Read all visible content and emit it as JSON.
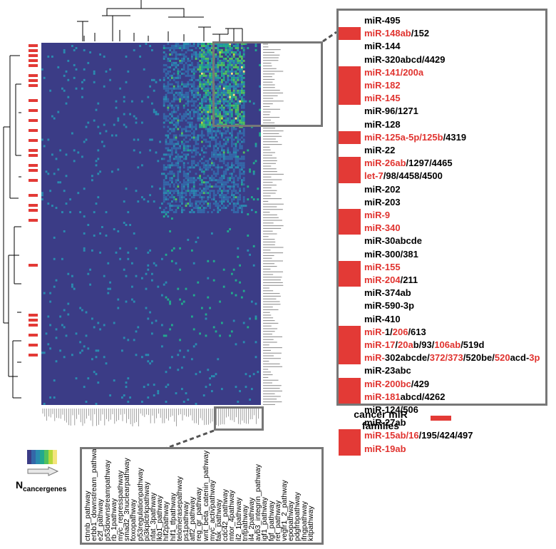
{
  "mir_families": [
    {
      "parts": [
        [
          "miR-495",
          false
        ]
      ],
      "cancer": false
    },
    {
      "parts": [
        [
          "miR-148ab",
          true
        ],
        [
          "/152",
          false
        ]
      ],
      "cancer": true
    },
    {
      "parts": [
        [
          "miR-144",
          false
        ]
      ],
      "cancer": false
    },
    {
      "parts": [
        [
          "miR-320abcd/4429",
          false
        ]
      ],
      "cancer": false
    },
    {
      "parts": [
        [
          "miR-141/200a",
          true
        ]
      ],
      "cancer": true
    },
    {
      "parts": [
        [
          "miR-182",
          true
        ]
      ],
      "cancer": true
    },
    {
      "parts": [
        [
          "miR-145",
          true
        ]
      ],
      "cancer": true
    },
    {
      "parts": [
        [
          "miR-96/1271",
          false
        ]
      ],
      "cancer": false
    },
    {
      "parts": [
        [
          "miR-128",
          false
        ]
      ],
      "cancer": false
    },
    {
      "parts": [
        [
          "miR-125a-5p/125b",
          true
        ],
        [
          "/4319",
          false
        ]
      ],
      "cancer": true
    },
    {
      "parts": [
        [
          "miR-22",
          false
        ]
      ],
      "cancer": false
    },
    {
      "parts": [
        [
          "miR-26ab",
          true
        ],
        [
          "/1297/4465",
          false
        ]
      ],
      "cancer": true
    },
    {
      "parts": [
        [
          "let-7",
          true
        ],
        [
          "/98/4458/4500",
          false
        ]
      ],
      "cancer": true
    },
    {
      "parts": [
        [
          "miR-202",
          false
        ]
      ],
      "cancer": false
    },
    {
      "parts": [
        [
          "miR-203",
          false
        ]
      ],
      "cancer": false
    },
    {
      "parts": [
        [
          "miR-9",
          true
        ]
      ],
      "cancer": true
    },
    {
      "parts": [
        [
          "miR-340",
          true
        ]
      ],
      "cancer": true
    },
    {
      "parts": [
        [
          "miR-30abcde",
          false
        ]
      ],
      "cancer": false
    },
    {
      "parts": [
        [
          "miR-300/381",
          false
        ]
      ],
      "cancer": false
    },
    {
      "parts": [
        [
          "miR-155",
          true
        ]
      ],
      "cancer": true
    },
    {
      "parts": [
        [
          "miR-204",
          true
        ],
        [
          "/211",
          false
        ]
      ],
      "cancer": true
    },
    {
      "parts": [
        [
          "miR-374ab",
          false
        ]
      ],
      "cancer": false
    },
    {
      "parts": [
        [
          "miR-590-3p",
          false
        ]
      ],
      "cancer": false
    },
    {
      "parts": [
        [
          "miR-410",
          false
        ]
      ],
      "cancer": false
    },
    {
      "parts": [
        [
          "miR-",
          true
        ],
        [
          "1/",
          false
        ],
        [
          "206",
          true
        ],
        [
          "/613",
          false
        ]
      ],
      "cancer": true
    },
    {
      "parts": [
        [
          "miR-17",
          true
        ],
        [
          "/",
          false
        ],
        [
          "20a",
          true
        ],
        [
          "b/93/",
          false
        ],
        [
          "106ab",
          true
        ],
        [
          "/519d",
          false
        ]
      ],
      "cancer": true
    },
    {
      "parts": [
        [
          "miR-",
          true
        ],
        [
          "302abcde/",
          false
        ],
        [
          "372/373",
          true
        ],
        [
          "/520be/",
          false
        ],
        [
          "520",
          true
        ],
        [
          "acd-",
          false
        ],
        [
          "3p",
          true
        ]
      ],
      "cancer": true
    },
    {
      "parts": [
        [
          "miR-23abc",
          false
        ]
      ],
      "cancer": false
    },
    {
      "parts": [
        [
          "miR-200bc",
          true
        ],
        [
          "/429",
          false
        ]
      ],
      "cancer": true
    },
    {
      "parts": [
        [
          "miR-181",
          true
        ],
        [
          "abcd/4262",
          false
        ]
      ],
      "cancer": true
    },
    {
      "parts": [
        [
          "miR-124/506",
          false
        ]
      ],
      "cancer": false
    },
    {
      "parts": [
        [
          "miR-27ab",
          false
        ]
      ],
      "cancer": false
    },
    {
      "parts": [
        [
          "miR-15ab/16",
          true
        ],
        [
          "/195/424/497",
          false
        ]
      ],
      "cancer": true
    },
    {
      "parts": [
        [
          "miR-19ab",
          true
        ]
      ],
      "cancer": true
    }
  ],
  "legend": {
    "cancer_label": "cancer miR families",
    "cancer_color": "#e33a36",
    "n_main": "N",
    "n_sub": "cancergenes",
    "colormap": [
      "#3b3c86",
      "#3467a8",
      "#2a8bb0",
      "#22a98e",
      "#51c15e",
      "#b5d93a",
      "#f4e47c"
    ]
  },
  "pathways": [
    "ctnnb_pathway",
    "erbb1_downstream_pathway",
    "e2f_pathway",
    "p53downstreampathway",
    "rb_1pathway",
    "myc_represspathway",
    "smad2_3nuclearpathway",
    "foxopathway",
    "p53regulationpathway",
    "pi3kplctrkpathway",
    "nfat_3pathway",
    "lkb1_pathway",
    "hif2pathway",
    "hif1_tfpathway",
    "telomerasepathway",
    "ps1pathway",
    "atf2_pathway",
    "reg_gr_pathway",
    "wnt_beta_catenin_pathway",
    "myc_activpathway",
    "fak_pathway",
    "cdc42_pathway",
    "mtor_4pathway",
    "il2_1pathway",
    "tnfpathway",
    "il4_2pathway",
    "avb3_integrin_pathway",
    "igf1_pathway",
    "fgf_pathway",
    "ret_pathway",
    "vegfr1_2_pathway",
    "epopathway",
    "pdgfrbpathway",
    "ifngpathway",
    "kitpathway"
  ]
}
